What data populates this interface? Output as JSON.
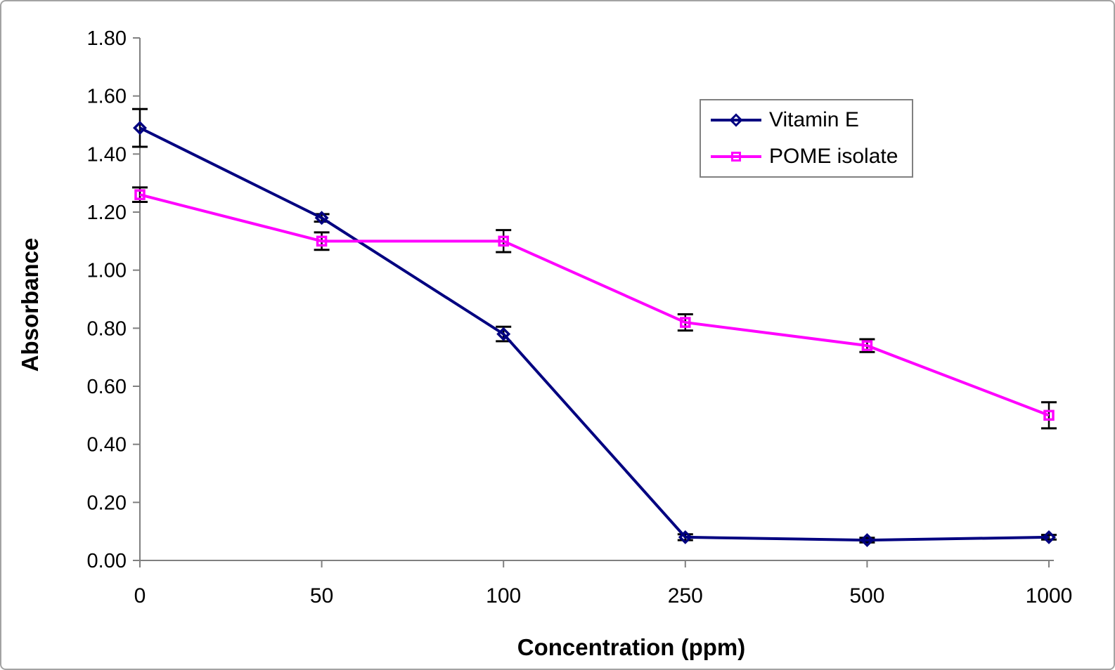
{
  "chart_data": {
    "type": "line",
    "title": "",
    "xlabel": "Concentration (ppm)",
    "ylabel": "Absorbance",
    "categories": [
      "0",
      "50",
      "100",
      "250",
      "500",
      "1000"
    ],
    "y_tick_labels": [
      "0.00",
      "0.20",
      "0.40",
      "0.60",
      "0.80",
      "1.00",
      "1.20",
      "1.40",
      "1.60",
      "1.80"
    ],
    "ylim": [
      0,
      1.8
    ],
    "y_step": 0.2,
    "grid": false,
    "legend_position": "upper-right-inside",
    "series": [
      {
        "name": "Vitamin E",
        "color": "#000080",
        "marker": "diamond",
        "values": [
          1.49,
          1.18,
          0.78,
          0.08,
          0.07,
          0.08
        ],
        "errors": [
          0.065,
          0.013,
          0.025,
          0.01,
          0.008,
          0.008
        ]
      },
      {
        "name": "POME isolate",
        "color": "#FF00FF",
        "marker": "square",
        "values": [
          1.26,
          1.1,
          1.1,
          0.82,
          0.74,
          0.5
        ],
        "errors": [
          0.025,
          0.03,
          0.038,
          0.028,
          0.022,
          0.045
        ]
      }
    ],
    "error_bar_color": "#000000",
    "axis_color": "#808080"
  }
}
